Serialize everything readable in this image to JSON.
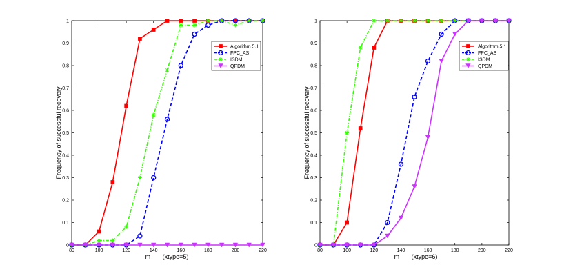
{
  "chart_data": [
    {
      "type": "line",
      "title": "",
      "xlabel": "m       (xtype=5)",
      "ylabel": "Frequency of successful recovery",
      "xlim": [
        80,
        220
      ],
      "ylim": [
        0,
        1
      ],
      "xticks": [
        "80",
        "100",
        "120",
        "140",
        "160",
        "180",
        "200",
        "220"
      ],
      "yticks": [
        "0",
        "0.1",
        "0.2",
        "0.3",
        "0.4",
        "0.5",
        "0.6",
        "0.7",
        "0.8",
        "0.9",
        "1"
      ],
      "legend_position": "top-right",
      "x": [
        80,
        90,
        100,
        110,
        120,
        130,
        140,
        150,
        160,
        170,
        180,
        190,
        200,
        210,
        220
      ],
      "series": [
        {
          "name": "Algorithm 5.1",
          "color": "#ff0000",
          "dash": "solid",
          "marker": "square",
          "values": [
            0,
            0,
            0.06,
            0.28,
            0.62,
            0.92,
            0.96,
            1,
            1,
            1,
            1,
            1,
            1,
            1,
            1
          ]
        },
        {
          "name": "FPC_AS",
          "color": "#0000ff",
          "dash": "dashed",
          "marker": "circle",
          "values": [
            0,
            0,
            0,
            0,
            0,
            0.04,
            0.3,
            0.56,
            0.8,
            0.94,
            0.98,
            1,
            1,
            1,
            1
          ]
        },
        {
          "name": "ISDM",
          "color": "#33ff00",
          "dash": "dashdot",
          "marker": "star",
          "values": [
            0,
            0,
            0.02,
            0.02,
            0.08,
            0.3,
            0.58,
            0.78,
            0.98,
            0.98,
            1,
            1,
            0.98,
            1,
            1
          ]
        },
        {
          "name": "QPDM",
          "color": "#cc33ff",
          "dash": "solid",
          "marker": "triangle-down",
          "values": [
            0,
            0,
            0,
            0,
            0,
            0,
            0,
            0,
            0,
            0,
            0,
            0,
            0,
            0,
            0
          ]
        }
      ]
    },
    {
      "type": "line",
      "title": "",
      "xlabel": "m       (xtype=6)",
      "ylabel": "Frequency of successful recovery",
      "xlim": [
        80,
        220
      ],
      "ylim": [
        0,
        1
      ],
      "xticks": [
        "80",
        "100",
        "120",
        "140",
        "160",
        "180",
        "200",
        "220"
      ],
      "yticks": [
        "0",
        "0.1",
        "0.2",
        "0.3",
        "0.4",
        "0.5",
        "0.6",
        "0.7",
        "0.8",
        "0.9",
        "1"
      ],
      "legend_position": "top-right",
      "x": [
        80,
        90,
        100,
        110,
        120,
        130,
        140,
        150,
        160,
        170,
        180,
        190,
        200,
        210,
        220
      ],
      "series": [
        {
          "name": "Algorithm 5.1",
          "color": "#ff0000",
          "dash": "solid",
          "marker": "square",
          "values": [
            0,
            0,
            0.1,
            0.52,
            0.88,
            1,
            1,
            1,
            1,
            1,
            1,
            1,
            1,
            1,
            1
          ]
        },
        {
          "name": "FPC_AS",
          "color": "#0000ff",
          "dash": "dashed",
          "marker": "circle",
          "values": [
            0,
            0,
            0,
            0,
            0,
            0.1,
            0.36,
            0.66,
            0.82,
            0.94,
            1,
            1,
            1,
            1,
            1
          ]
        },
        {
          "name": "ISDM",
          "color": "#33ff00",
          "dash": "dashdot",
          "marker": "star",
          "values": [
            0,
            0,
            0.5,
            0.88,
            1,
            1,
            1,
            1,
            1,
            1,
            1,
            1,
            1,
            1,
            1
          ]
        },
        {
          "name": "QPDM",
          "color": "#cc33ff",
          "dash": "solid",
          "marker": "triangle-down",
          "values": [
            0,
            0,
            0,
            0,
            0,
            0.04,
            0.12,
            0.26,
            0.48,
            0.82,
            0.94,
            1,
            1,
            1,
            1
          ]
        }
      ]
    }
  ]
}
